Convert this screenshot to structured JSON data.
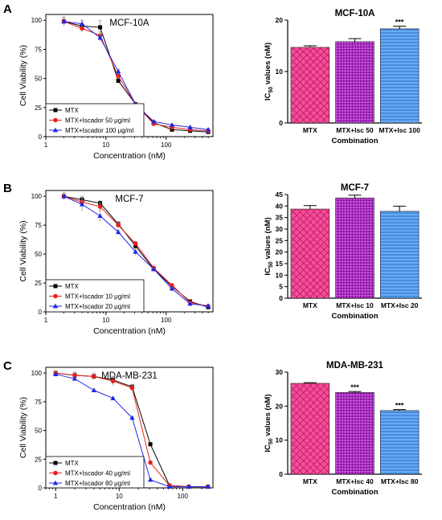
{
  "panels": [
    {
      "letter": "A",
      "line": {
        "title": "MCF-10A",
        "xlabel": "Concentration (nM)",
        "ylabel": "Cell Viability (%)",
        "xscale": "log",
        "xlim": [
          1,
          600
        ],
        "ylim": [
          0,
          105
        ],
        "xticks": [
          1,
          10,
          100
        ],
        "yticks": [
          0,
          25,
          50,
          75,
          100
        ],
        "legend_placement": "lower-left",
        "series": [
          {
            "name": "MTX",
            "color": "#000000",
            "marker": "square",
            "x": [
              2,
              4,
              8,
              16,
              31,
              62,
              125,
              250,
              500
            ],
            "y": [
              99,
              95,
              94,
              48,
              28,
              12,
              6,
              5,
              4
            ],
            "err": [
              4,
              5,
              6,
              2,
              1,
              1,
              1,
              1,
              1
            ]
          },
          {
            "name": "MTX+Iscador 50 μg/ml",
            "color": "#e8201b",
            "marker": "circle",
            "x": [
              2,
              4,
              8,
              16,
              31,
              62,
              125,
              250,
              500
            ],
            "y": [
              99,
              93,
              87,
              52,
              28,
              11,
              8,
              6,
              5
            ],
            "err": [
              3,
              3,
              3,
              2,
              1,
              1,
              1,
              1,
              1
            ]
          },
          {
            "name": "MTX+Iscador 100 μg/ml",
            "color": "#1f26e6",
            "marker": "triangle",
            "x": [
              2,
              4,
              8,
              16,
              31,
              62,
              125,
              250,
              500
            ],
            "y": [
              99,
              97,
              85,
              56,
              28,
              13,
              10,
              8,
              6
            ],
            "err": [
              3,
              3,
              3,
              2,
              1,
              1,
              1,
              1,
              1
            ]
          }
        ]
      },
      "bar": {
        "title": "MCF-10A",
        "xlabel": "Combination",
        "ylabel_main": "IC",
        "ylabel_sub": "50",
        "ylabel_rest": " values (nM)",
        "ylim": [
          0,
          20
        ],
        "yticks": [
          0,
          10,
          20
        ],
        "categories": [
          "MTX",
          "MTX+Isc 50",
          "MTX+Isc 100"
        ],
        "values": [
          14.7,
          15.8,
          18.3
        ],
        "errors": [
          0.3,
          0.6,
          0.5
        ],
        "significance": [
          "",
          "",
          "***"
        ]
      }
    },
    {
      "letter": "B",
      "line": {
        "title": "MCF-7",
        "xlabel": "Concentration (nM)",
        "ylabel": "Cell Viability (%)",
        "xscale": "log",
        "xlim": [
          1,
          600
        ],
        "ylim": [
          0,
          105
        ],
        "xticks": [
          1,
          10,
          100
        ],
        "yticks": [
          0,
          25,
          50,
          75,
          100
        ],
        "legend_placement": "lower-left",
        "series": [
          {
            "name": "MTX",
            "color": "#000000",
            "marker": "square",
            "x": [
              2,
              4,
              8,
              16,
              31,
              62,
              125,
              250,
              500
            ],
            "y": [
              100,
              97,
              94,
              76,
              57,
              37,
              22,
              9,
              4
            ],
            "err": [
              3,
              3,
              2,
              2,
              2,
              1,
              1,
              1,
              1
            ]
          },
          {
            "name": "MTX+Iscador 10 μg/ml",
            "color": "#e8201b",
            "marker": "circle",
            "x": [
              2,
              4,
              8,
              16,
              31,
              62,
              125,
              250,
              500
            ],
            "y": [
              100,
              95,
              91,
              75,
              59,
              38,
              23,
              8,
              5
            ],
            "err": [
              3,
              4,
              3,
              2,
              2,
              1,
              1,
              1,
              1
            ]
          },
          {
            "name": "MTX+Iscador 20 μg/ml",
            "color": "#1f26e6",
            "marker": "triangle",
            "x": [
              2,
              4,
              8,
              16,
              31,
              62,
              125,
              250,
              500
            ],
            "y": [
              100,
              93,
              83,
              69,
              52,
              37,
              20,
              7,
              5
            ],
            "err": [
              3,
              6,
              5,
              2,
              3,
              1,
              1,
              1,
              1
            ]
          }
        ]
      },
      "bar": {
        "title": "MCF-7",
        "xlabel": "Combination",
        "ylabel_main": "IC",
        "ylabel_sub": "50",
        "ylabel_rest": " values (nM)",
        "ylim": [
          0,
          45
        ],
        "yticks": [
          0,
          5,
          10,
          15,
          20,
          25,
          30,
          35,
          40,
          45
        ],
        "categories": [
          "MTX",
          "MTX+Isc 10",
          "MTX+Isc 20"
        ],
        "values": [
          38.7,
          43.5,
          37.7
        ],
        "errors": [
          1.5,
          1.2,
          2.2
        ],
        "significance": [
          "",
          "",
          ""
        ]
      }
    },
    {
      "letter": "C",
      "line": {
        "title": "MDA-MB-231",
        "xlabel": "Concentration (nM)",
        "ylabel": "Cell Viability (%)",
        "xscale": "log",
        "xlim": [
          0.7,
          300
        ],
        "ylim": [
          0,
          105
        ],
        "xticks": [
          1,
          10,
          100
        ],
        "yticks": [
          0,
          25,
          50,
          75,
          100
        ],
        "legend_placement": "lower-left",
        "series": [
          {
            "name": "MTX",
            "color": "#000000",
            "marker": "square",
            "x": [
              1,
              2,
              4,
              8,
              16,
              31,
              62,
              125,
              250
            ],
            "y": [
              100,
              98,
              97,
              94,
              88,
              38,
              2,
              1,
              1
            ],
            "err": [
              2,
              2,
              2,
              2,
              2,
              1,
              1,
              0.5,
              0.5
            ]
          },
          {
            "name": "MTX+Iscador 40 μg/ml",
            "color": "#e8201b",
            "marker": "circle",
            "x": [
              1,
              2,
              4,
              8,
              16,
              31,
              62,
              125,
              250
            ],
            "y": [
              100,
              98,
              97,
              93,
              87,
              22,
              2,
              1,
              1
            ],
            "err": [
              2,
              3,
              3,
              4,
              2,
              1,
              1,
              0.5,
              0.5
            ]
          },
          {
            "name": "MTX+Iscador 80 μg/ml",
            "color": "#1f26e6",
            "marker": "triangle",
            "x": [
              1,
              2,
              4,
              8,
              16,
              31,
              62,
              125,
              250
            ],
            "y": [
              99,
              95,
              85,
              78,
              61,
              7,
              1,
              1,
              1
            ],
            "err": [
              2,
              1,
              1,
              1,
              1,
              1,
              0.5,
              0.5,
              0.5
            ]
          }
        ]
      },
      "bar": {
        "title": "MDA-MB-231",
        "xlabel": "Combination",
        "ylabel_main": "IC",
        "ylabel_sub": "50",
        "ylabel_rest": " values (nM)",
        "ylim": [
          0,
          30
        ],
        "yticks": [
          0,
          10,
          20,
          30
        ],
        "categories": [
          "MTX",
          "MTX+Isc 40",
          "MTX+Isc 80"
        ],
        "values": [
          26.7,
          24.0,
          18.7
        ],
        "errors": [
          0.2,
          0.3,
          0.3
        ],
        "significance": [
          "",
          "***",
          "***"
        ]
      }
    }
  ],
  "colors": {
    "bar_pink": "#ee2a7b",
    "bar_purple": "#ad1fc9",
    "bar_blue": "#4a95ea"
  }
}
